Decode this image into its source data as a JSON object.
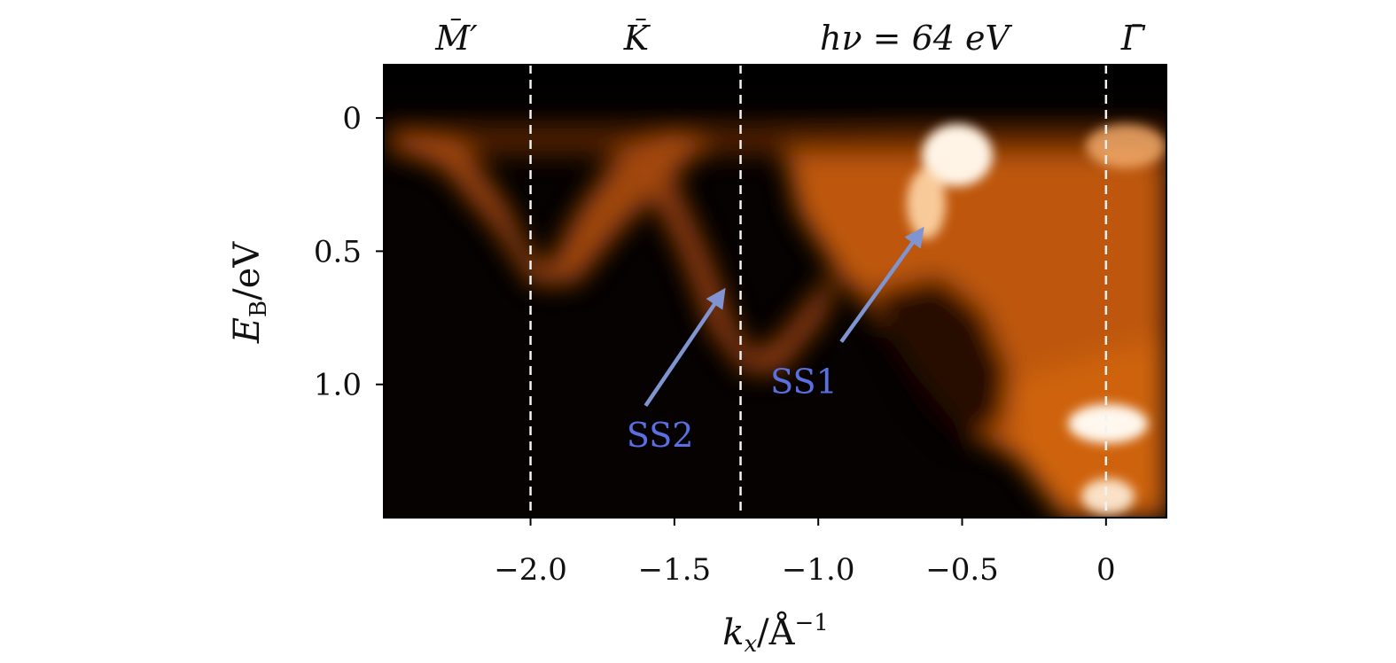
{
  "chart_data": {
    "type": "heatmap",
    "title": "",
    "photon_energy_label": "hν = 64 eV",
    "xlabel": {
      "main": "k",
      "sub": "x",
      "unit": "/Å",
      "sup": "−1"
    },
    "ylabel": {
      "main": "E",
      "sub": "B",
      "unit": "/eV"
    },
    "xlim": [
      -2.51,
      0.21
    ],
    "ylim": [
      1.5,
      -0.2
    ],
    "y_inverted": true,
    "x_ticks": [
      {
        "value": -2.0,
        "label": "−2.0"
      },
      {
        "value": -1.5,
        "label": "−1.5"
      },
      {
        "value": -1.0,
        "label": "−1.0"
      },
      {
        "value": -0.5,
        "label": "−0.5"
      },
      {
        "value": 0.0,
        "label": "0"
      }
    ],
    "y_ticks": [
      {
        "value": 0.0,
        "label": "0"
      },
      {
        "value": 0.5,
        "label": "0.5"
      },
      {
        "value": 1.0,
        "label": "1.0"
      }
    ],
    "high_symmetry_points": [
      {
        "name": "M̄′",
        "k": -2.0,
        "line": true
      },
      {
        "name": "K̄",
        "k": -1.27,
        "line": true
      },
      {
        "name": "Γ̄",
        "k": 0.0,
        "line": true
      }
    ],
    "annotations": [
      {
        "text": "SS2",
        "label_at": [
          -1.55,
          1.2
        ],
        "arrow_from": [
          -1.6,
          1.08
        ],
        "arrow_to": [
          -1.33,
          0.65
        ],
        "color": "#5a6fe0"
      },
      {
        "text": "SS1",
        "label_at": [
          -1.05,
          1.0
        ],
        "arrow_from": [
          -0.92,
          0.84
        ],
        "arrow_to": [
          -0.64,
          0.42
        ],
        "color": "#5a6fe0"
      }
    ],
    "colormap": "black-orange-white",
    "features": [
      {
        "name": "band-M-K",
        "points": [
          [
            -2.45,
            0.05
          ],
          [
            -2.2,
            0.25
          ],
          [
            -2.0,
            0.5
          ],
          [
            -1.8,
            0.35
          ],
          [
            -1.6,
            0.15
          ],
          [
            -1.45,
            0.1
          ]
        ]
      },
      {
        "name": "band-K-SS2",
        "points": [
          [
            -1.7,
            0.05
          ],
          [
            -1.5,
            0.3
          ],
          [
            -1.35,
            0.6
          ],
          [
            -1.25,
            0.88
          ],
          [
            -1.1,
            0.7
          ],
          [
            -0.95,
            0.5
          ]
        ]
      },
      {
        "name": "band-SS1",
        "points": [
          [
            -0.95,
            0.55
          ],
          [
            -0.8,
            0.35
          ],
          [
            -0.65,
            0.25
          ],
          [
            -0.5,
            0.05
          ]
        ]
      },
      {
        "name": "bright-gamma-bottom",
        "points": [
          [
            -0.05,
            1.15
          ],
          [
            0.05,
            1.15
          ],
          [
            0.0,
            1.4
          ]
        ]
      }
    ]
  }
}
